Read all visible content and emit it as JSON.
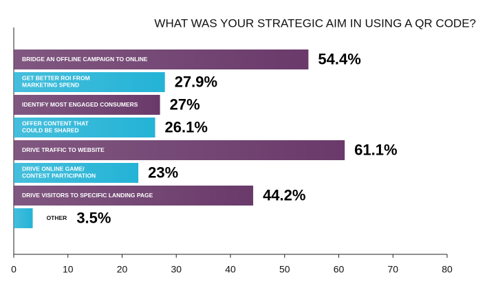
{
  "chart_data": {
    "type": "hbar",
    "title": "WHAT WAS YOUR STRATEGIC AIM IN USING A QR CODE?",
    "categories": [
      "BRIDGE AN OFFLINE CAMPAIGN TO ONLINE",
      "GET BETTER ROI FROM\nMARKETING SPEND",
      "IDENTIFY MOST ENGAGED CONSUMERS",
      "OFFER CONTENT THAT\nCOULD BE SHARED",
      "DRIVE TRAFFIC TO WEBSITE",
      "DRIVE ONLINE GAME/\nCONTEST PARTICIPATION",
      "DRIVE VISITORS TO SPECIFIC LANDING PAGE",
      "OTHER"
    ],
    "values": [
      54.4,
      27.9,
      27,
      26.1,
      61.1,
      23,
      44.2,
      3.5
    ],
    "value_labels": [
      "54.4%",
      "27.9%",
      "27%",
      "26.1%",
      "61.1%",
      "23%",
      "44.2%",
      "3.5%"
    ],
    "colors": [
      "#6a3a6a",
      "#24b3d6",
      "#6a3a6a",
      "#24b3d6",
      "#6a3a6a",
      "#24b3d6",
      "#6a3a6a",
      "#24b3d6"
    ],
    "xlim": [
      0,
      80
    ],
    "xticks": [
      0,
      10,
      20,
      30,
      40,
      50,
      60,
      70,
      80
    ]
  }
}
